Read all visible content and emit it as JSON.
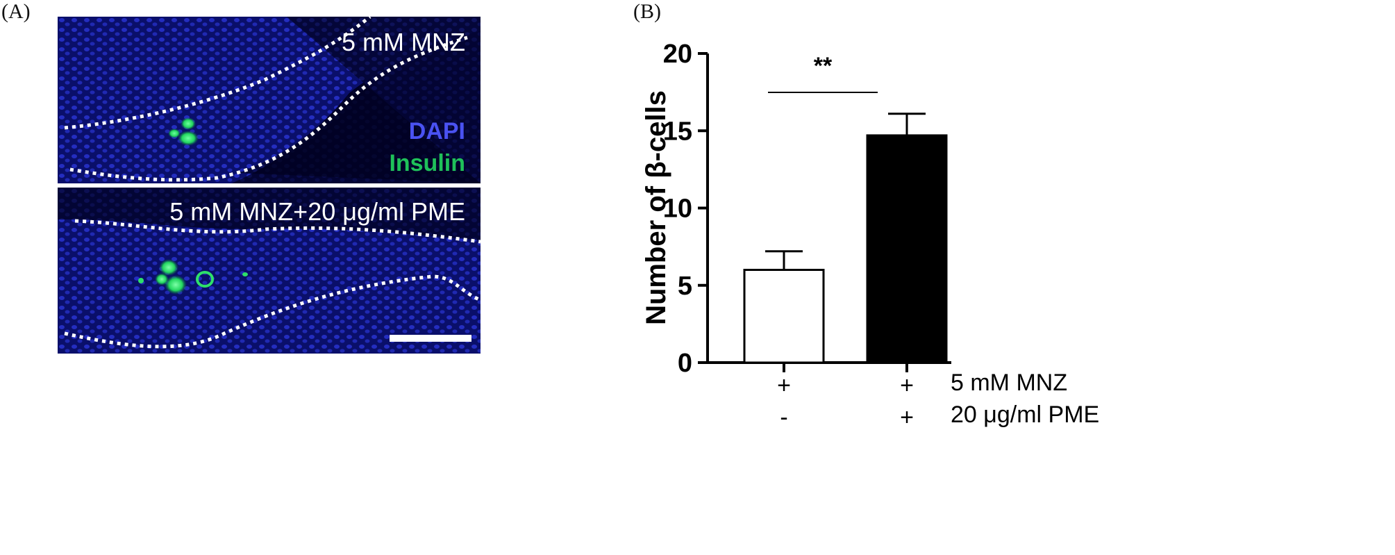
{
  "panel_a": {
    "letter": "(A)",
    "top_label": "5 mM MNZ",
    "bottom_label": "5 mM MNZ+20 μg/ml PME",
    "stain_dapi": "DAPI",
    "stain_insulin": "Insulin",
    "colors": {
      "dapi": "#4a52f2",
      "insulin": "#1fc15a",
      "background": "#000000"
    }
  },
  "panel_b": {
    "letter": "(B)",
    "significance": "**",
    "conditions": [
      {
        "label": "5 mM MNZ",
        "values": [
          "+",
          "+"
        ]
      },
      {
        "label": "20 μg/ml PME",
        "values": [
          "-",
          "+"
        ]
      }
    ]
  },
  "chart_data": {
    "type": "bar",
    "categories": [
      "5 mM MNZ",
      "5 mM MNZ + 20 μg/ml PME"
    ],
    "values": [
      6.0,
      14.7
    ],
    "errors": [
      1.2,
      1.4
    ],
    "bar_colors": [
      "#ffffff",
      "#000000"
    ],
    "ylabel": "Number of β-cells",
    "ylim": [
      0,
      20
    ],
    "yticks": [
      0,
      5,
      10,
      15,
      20
    ],
    "ytick_labels": [
      "0",
      "5",
      "10",
      "15",
      "20"
    ],
    "grid": false,
    "legend": "none"
  }
}
